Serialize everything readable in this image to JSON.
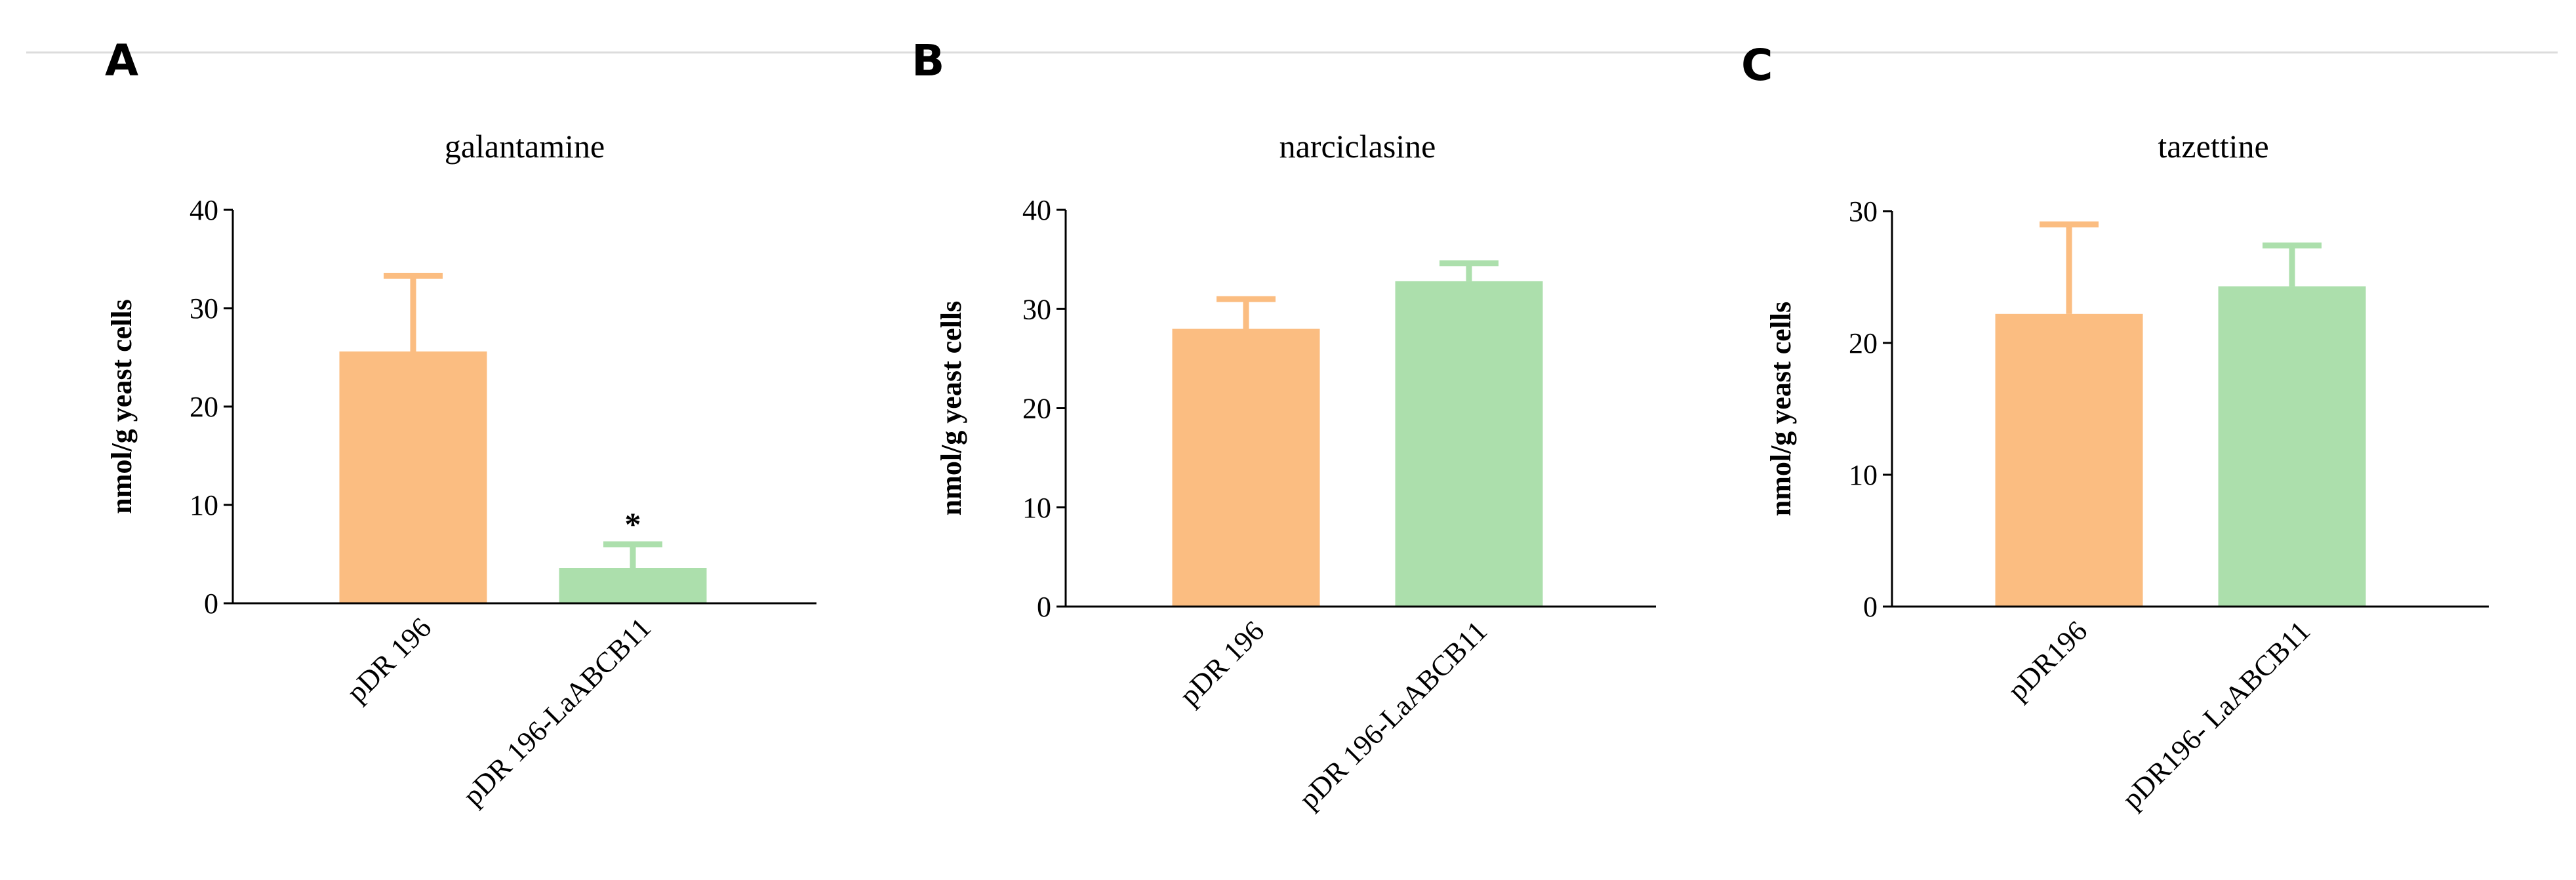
{
  "colors": {
    "orange": "#fbbd81",
    "green": "#acdfac",
    "divider": "#dcdcdc"
  },
  "chart_data": [
    {
      "type": "bar",
      "panel": "A",
      "title": "galantamine",
      "ylabel": "nmol/g yeast cells",
      "ylim": [
        0,
        40
      ],
      "yticks": [
        0,
        10,
        20,
        30,
        40
      ],
      "categories": [
        "pDR 196",
        "pDR 196-LaABCB11"
      ],
      "values": [
        25.6,
        3.6
      ],
      "error_upper": [
        33.3,
        6.0
      ],
      "colors": [
        "#fbbd81",
        "#acdfac"
      ],
      "annotations": [
        "",
        "*"
      ]
    },
    {
      "type": "bar",
      "panel": "B",
      "title": "narciclasine",
      "ylabel": "nmol/g yeast cells",
      "ylim": [
        0,
        40
      ],
      "yticks": [
        0,
        10,
        20,
        30,
        40
      ],
      "categories": [
        "pDR 196",
        "pDR 196-LaABCB11"
      ],
      "values": [
        28.0,
        32.8
      ],
      "error_upper": [
        31.0,
        34.6
      ],
      "colors": [
        "#fbbd81",
        "#acdfac"
      ],
      "annotations": [
        "",
        ""
      ]
    },
    {
      "type": "bar",
      "panel": "C",
      "title": "tazettine",
      "ylabel": "nmol/g yeast cells",
      "ylim": [
        0,
        30
      ],
      "yticks": [
        0,
        10,
        20,
        30
      ],
      "categories": [
        "pDR196",
        "pDR196- LaABCB11"
      ],
      "values": [
        22.2,
        24.3
      ],
      "error_upper": [
        29.0,
        27.4
      ],
      "colors": [
        "#fbbd81",
        "#acdfac"
      ],
      "annotations": [
        "",
        ""
      ]
    }
  ]
}
